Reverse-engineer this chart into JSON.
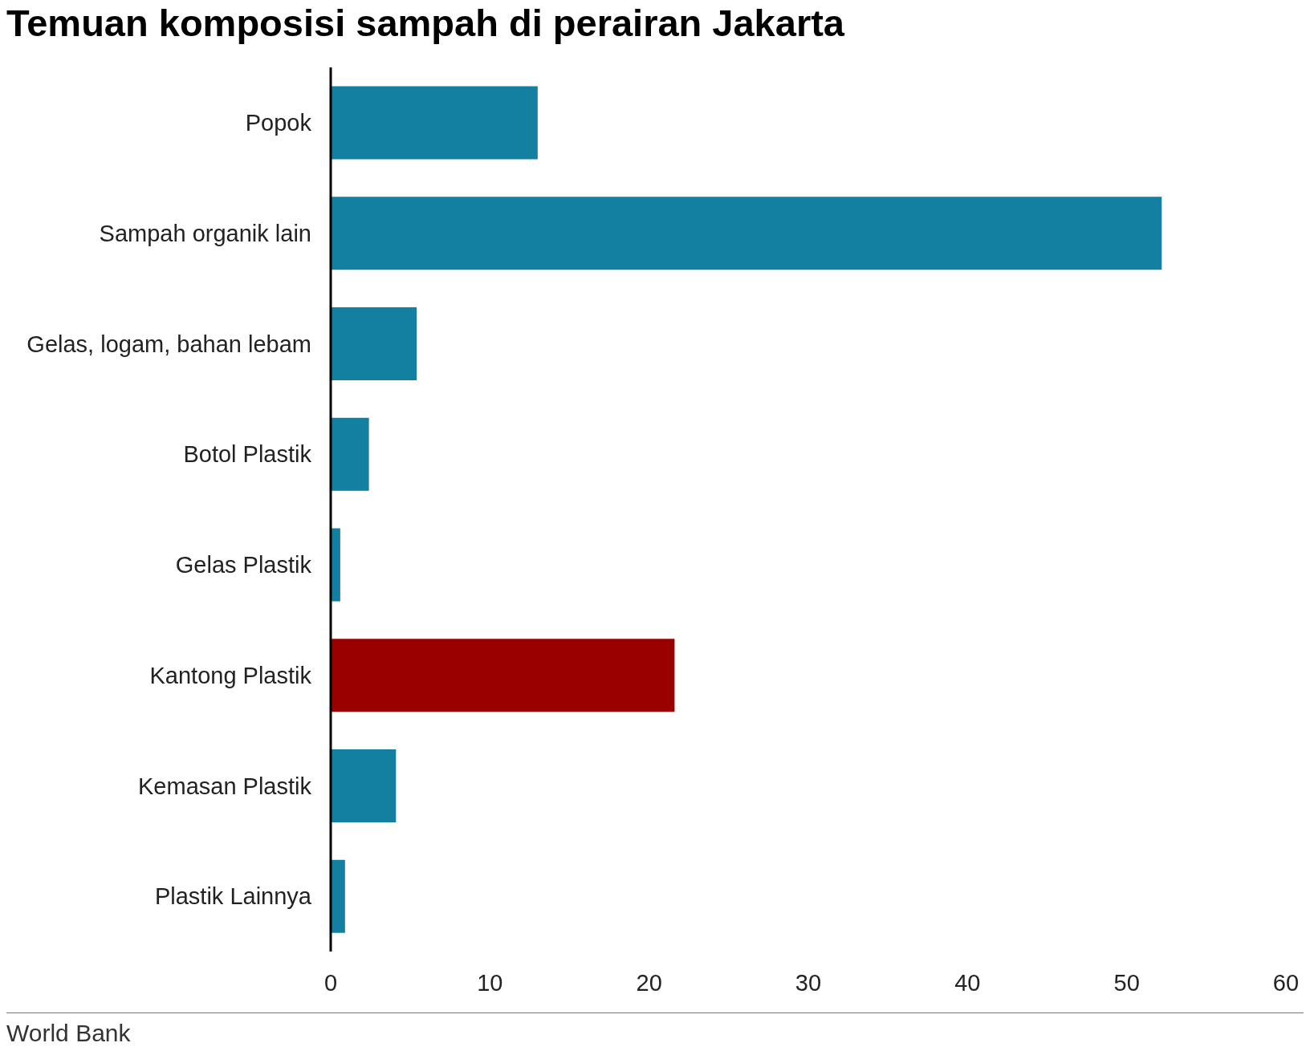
{
  "chart_data": {
    "type": "bar",
    "orientation": "horizontal",
    "title": "Temuan komposisi sampah di perairan Jakarta",
    "categories": [
      "Popok",
      "Sampah organik lain",
      "Gelas, logam, bahan lebam",
      "Botol Plastik",
      "Gelas Plastik",
      "Kantong Plastik",
      "Kemasan Plastik",
      "Plastik Lainnya"
    ],
    "values": [
      13,
      52.2,
      5.4,
      2.4,
      0.6,
      21.6,
      4.1,
      0.9
    ],
    "colors": [
      "#1380a1",
      "#1380a1",
      "#1380a1",
      "#1380a1",
      "#1380a1",
      "#990000",
      "#1380a1",
      "#1380a1"
    ],
    "xlim": [
      0,
      60
    ],
    "xticks": [
      0,
      10,
      20,
      30,
      40,
      50,
      60
    ],
    "annotations": [
      "World Bank"
    ]
  }
}
